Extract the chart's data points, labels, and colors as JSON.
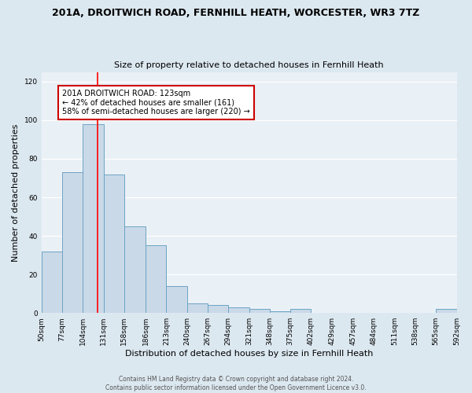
{
  "title": "201A, DROITWICH ROAD, FERNHILL HEATH, WORCESTER, WR3 7TZ",
  "subtitle": "Size of property relative to detached houses in Fernhill Heath",
  "xlabel": "Distribution of detached houses by size in Fernhill Heath",
  "ylabel": "Number of detached properties",
  "bin_edges": [
    50,
    77,
    104,
    131,
    158,
    186,
    213,
    240,
    267,
    294,
    321,
    348,
    375,
    402,
    429,
    457,
    484,
    511,
    538,
    565,
    592
  ],
  "bar_heights": [
    32,
    73,
    98,
    72,
    45,
    35,
    14,
    5,
    4,
    3,
    2,
    1,
    2,
    0,
    0,
    0,
    0,
    0,
    0,
    2
  ],
  "bar_color": "#c9d9e8",
  "bar_edge_color": "#6da4c4",
  "reference_line_x": 123,
  "ylim": [
    0,
    125
  ],
  "yticks": [
    0,
    20,
    40,
    60,
    80,
    100,
    120
  ],
  "tick_labels": [
    "50sqm",
    "77sqm",
    "104sqm",
    "131sqm",
    "158sqm",
    "186sqm",
    "213sqm",
    "240sqm",
    "267sqm",
    "294sqm",
    "321sqm",
    "348sqm",
    "375sqm",
    "402sqm",
    "429sqm",
    "457sqm",
    "484sqm",
    "511sqm",
    "538sqm",
    "565sqm",
    "592sqm"
  ],
  "annotation_text": "201A DROITWICH ROAD: 123sqm\n← 42% of detached houses are smaller (161)\n58% of semi-detached houses are larger (220) →",
  "annotation_box_color": "#ffffff",
  "annotation_box_edge_color": "#cc0000",
  "footer_line1": "Contains HM Land Registry data © Crown copyright and database right 2024.",
  "footer_line2": "Contains public sector information licensed under the Open Government Licence v3.0.",
  "background_color": "#dce8f0",
  "plot_background_color": "#eaf1f6",
  "title_fontsize": 9,
  "subtitle_fontsize": 8,
  "xlabel_fontsize": 8,
  "ylabel_fontsize": 8,
  "tick_fontsize": 6.5,
  "annotation_fontsize": 7,
  "footer_fontsize": 5.5
}
